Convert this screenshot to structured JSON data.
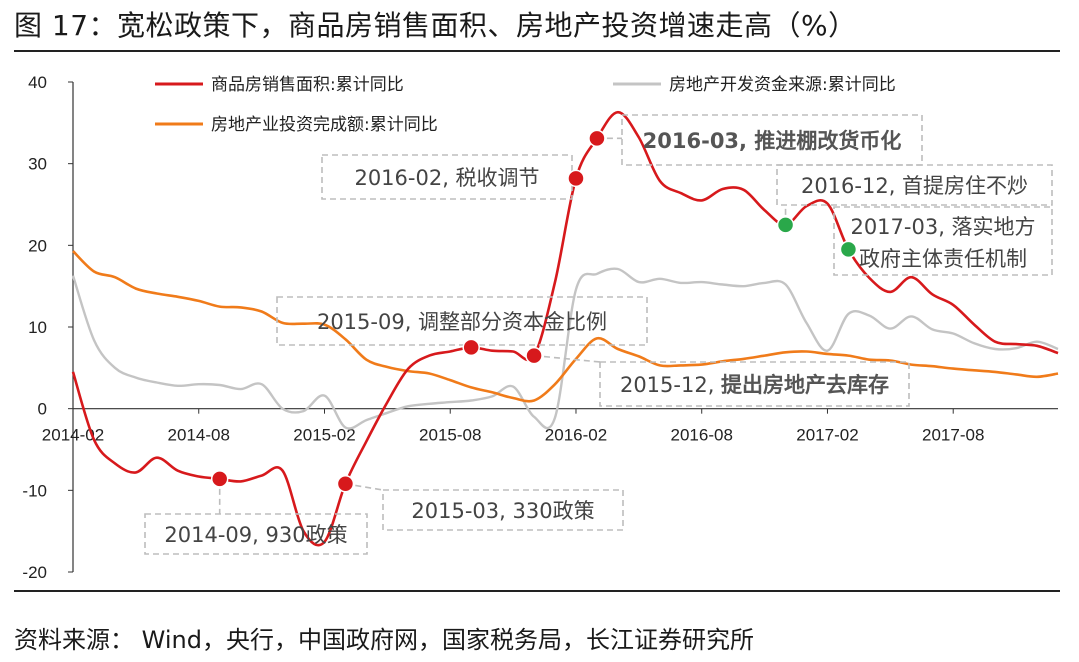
{
  "title": "图 17：宽松政策下，商品房销售面积、房地产投资增速走高（%）",
  "source": "资料来源：  Wind，央行，中国政府网，国家税务局，长江证券研究所",
  "chart_data": {
    "type": "line",
    "ylim": [
      -20,
      40
    ],
    "yticks": [
      40,
      30,
      20,
      10,
      0,
      -10,
      -20
    ],
    "xlim": [
      "2014-02",
      "2017-12"
    ],
    "xticks": [
      "2014-02",
      "2014-08",
      "2015-02",
      "2015-08",
      "2016-02",
      "2016-08",
      "2017-02",
      "2017-08"
    ],
    "grid": false,
    "legend_position": "top",
    "series": [
      {
        "name": "商品房销售面积:累计同比",
        "color": "#d7191c",
        "points": [
          [
            "2014-02",
            4.5
          ],
          [
            "2014-03",
            -3.8
          ],
          [
            "2014-04",
            -6.7
          ],
          [
            "2014-05",
            -7.8
          ],
          [
            "2014-06",
            -6.0
          ],
          [
            "2014-07",
            -7.6
          ],
          [
            "2014-08",
            -8.3
          ],
          [
            "2014-09",
            -8.6
          ],
          [
            "2014-10",
            -8.9
          ],
          [
            "2014-11",
            -8.2
          ],
          [
            "2014-12",
            -7.6
          ],
          [
            "2015-01",
            -15.0
          ],
          [
            "2015-02",
            -16.3
          ],
          [
            "2015-03",
            -9.2
          ],
          [
            "2015-04",
            -4.0
          ],
          [
            "2015-05",
            0.8
          ],
          [
            "2015-06",
            4.9
          ],
          [
            "2015-07",
            6.5
          ],
          [
            "2015-08",
            7.0
          ],
          [
            "2015-09",
            7.5
          ],
          [
            "2015-10",
            7.1
          ],
          [
            "2015-11",
            7.0
          ],
          [
            "2015-12",
            6.5
          ],
          [
            "2016-01",
            15.5
          ],
          [
            "2016-02",
            28.2
          ],
          [
            "2016-03",
            33.1
          ],
          [
            "2016-04",
            36.3
          ],
          [
            "2016-05",
            33.2
          ],
          [
            "2016-06",
            27.9
          ],
          [
            "2016-07",
            26.4
          ],
          [
            "2016-08",
            25.5
          ],
          [
            "2016-09",
            26.9
          ],
          [
            "2016-10",
            26.8
          ],
          [
            "2016-11",
            24.3
          ],
          [
            "2016-12",
            22.5
          ],
          [
            "2017-01",
            24.8
          ],
          [
            "2017-02",
            25.1
          ],
          [
            "2017-03",
            19.5
          ],
          [
            "2017-04",
            16.0
          ],
          [
            "2017-05",
            14.3
          ],
          [
            "2017-06",
            16.1
          ],
          [
            "2017-07",
            14.0
          ],
          [
            "2017-08",
            12.7
          ],
          [
            "2017-09",
            10.3
          ],
          [
            "2017-10",
            8.2
          ],
          [
            "2017-11",
            7.9
          ],
          [
            "2017-12",
            7.7
          ],
          [
            "2018-01",
            6.8
          ]
        ]
      },
      {
        "name": "房地产开发资金来源:累计同比",
        "color": "#c4c4c4",
        "points": [
          [
            "2014-02",
            16.3
          ],
          [
            "2014-03",
            8.4
          ],
          [
            "2014-04",
            5.0
          ],
          [
            "2014-05",
            3.8
          ],
          [
            "2014-06",
            3.2
          ],
          [
            "2014-07",
            2.8
          ],
          [
            "2014-08",
            3.0
          ],
          [
            "2014-09",
            2.9
          ],
          [
            "2014-10",
            2.4
          ],
          [
            "2014-11",
            3.0
          ],
          [
            "2014-12",
            0.0
          ],
          [
            "2015-01",
            -0.3
          ],
          [
            "2015-02",
            1.6
          ],
          [
            "2015-03",
            -2.3
          ],
          [
            "2015-04",
            -1.4
          ],
          [
            "2015-05",
            -0.5
          ],
          [
            "2015-06",
            0.3
          ],
          [
            "2015-07",
            0.6
          ],
          [
            "2015-08",
            0.8
          ],
          [
            "2015-09",
            1.0
          ],
          [
            "2015-10",
            1.5
          ],
          [
            "2015-11",
            2.7
          ],
          [
            "2015-12",
            -1.0
          ],
          [
            "2016-01",
            -1.1
          ],
          [
            "2016-02",
            14.6
          ],
          [
            "2016-03",
            16.5
          ],
          [
            "2016-04",
            17.1
          ],
          [
            "2016-05",
            15.5
          ],
          [
            "2016-06",
            15.9
          ],
          [
            "2016-07",
            15.4
          ],
          [
            "2016-08",
            15.5
          ],
          [
            "2016-09",
            15.2
          ],
          [
            "2016-10",
            15.0
          ],
          [
            "2016-11",
            15.4
          ],
          [
            "2016-12",
            15.2
          ],
          [
            "2017-01",
            10.5
          ],
          [
            "2017-02",
            7.1
          ],
          [
            "2017-03",
            11.6
          ],
          [
            "2017-04",
            11.4
          ],
          [
            "2017-05",
            9.8
          ],
          [
            "2017-06",
            11.3
          ],
          [
            "2017-07",
            9.7
          ],
          [
            "2017-08",
            9.2
          ],
          [
            "2017-09",
            8.0
          ],
          [
            "2017-10",
            7.3
          ],
          [
            "2017-11",
            7.4
          ],
          [
            "2017-12",
            8.2
          ],
          [
            "2018-01",
            7.3
          ]
        ]
      },
      {
        "name": "房地产业投资完成额:累计同比",
        "color": "#f07b1a",
        "points": [
          [
            "2014-02",
            19.3
          ],
          [
            "2014-03",
            16.8
          ],
          [
            "2014-04",
            16.1
          ],
          [
            "2014-05",
            14.7
          ],
          [
            "2014-06",
            14.1
          ],
          [
            "2014-07",
            13.7
          ],
          [
            "2014-08",
            13.2
          ],
          [
            "2014-09",
            12.5
          ],
          [
            "2014-10",
            12.4
          ],
          [
            "2014-11",
            11.9
          ],
          [
            "2014-12",
            10.5
          ],
          [
            "2015-01",
            10.4
          ],
          [
            "2015-02",
            10.3
          ],
          [
            "2015-03",
            8.5
          ],
          [
            "2015-04",
            6.0
          ],
          [
            "2015-05",
            5.1
          ],
          [
            "2015-06",
            4.6
          ],
          [
            "2015-07",
            4.3
          ],
          [
            "2015-08",
            3.5
          ],
          [
            "2015-09",
            2.6
          ],
          [
            "2015-10",
            2.0
          ],
          [
            "2015-11",
            1.3
          ],
          [
            "2015-12",
            1.0
          ],
          [
            "2016-01",
            3.0
          ],
          [
            "2016-02",
            6.1
          ],
          [
            "2016-03",
            8.6
          ],
          [
            "2016-04",
            7.3
          ],
          [
            "2016-05",
            6.4
          ],
          [
            "2016-06",
            5.3
          ],
          [
            "2016-07",
            5.3
          ],
          [
            "2016-08",
            5.4
          ],
          [
            "2016-09",
            5.8
          ],
          [
            "2016-10",
            6.1
          ],
          [
            "2016-11",
            6.5
          ],
          [
            "2016-12",
            6.9
          ],
          [
            "2017-01",
            7.0
          ],
          [
            "2017-02",
            6.7
          ],
          [
            "2017-03",
            6.5
          ],
          [
            "2017-04",
            6.0
          ],
          [
            "2017-05",
            5.9
          ],
          [
            "2017-06",
            5.4
          ],
          [
            "2017-07",
            5.2
          ],
          [
            "2017-08",
            4.9
          ],
          [
            "2017-09",
            4.7
          ],
          [
            "2017-10",
            4.5
          ],
          [
            "2017-11",
            4.2
          ],
          [
            "2017-12",
            3.9
          ],
          [
            "2018-01",
            4.3
          ]
        ]
      }
    ],
    "annotations": [
      {
        "text": "2014-09, 930政策",
        "date": "2014-09",
        "value": -8.6,
        "color": "#d7191c",
        "bold": false
      },
      {
        "text": "2015-03, 330政策",
        "date": "2015-03",
        "value": -9.2,
        "color": "#d7191c",
        "bold": false
      },
      {
        "text": "2015-09, 调整部分资本金比例",
        "date": "2015-09",
        "value": 7.5,
        "color": "#d7191c",
        "bold": false
      },
      {
        "text_prefix": "2015-12, ",
        "text_bold": "提出房地产去库存",
        "date": "2015-12",
        "value": 6.5,
        "color": "#d7191c",
        "bold": true
      },
      {
        "text": "2016-02, 税收调节",
        "date": "2016-02",
        "value": 28.2,
        "color": "#d7191c",
        "bold": false
      },
      {
        "text": "2016-03, 推进棚改货币化",
        "date": "2016-03",
        "value": 33.1,
        "color": "#d7191c",
        "bold": true
      },
      {
        "text": "2016-12, 首提房住不炒",
        "date": "2016-12",
        "value": 22.5,
        "color": "#2aa84a",
        "bold": false
      },
      {
        "text_lines": [
          "2017-03, 落实地方",
          "政府主体责任机制"
        ],
        "date": "2017-03",
        "value": 19.5,
        "color": "#2aa84a",
        "bold": false
      }
    ]
  }
}
